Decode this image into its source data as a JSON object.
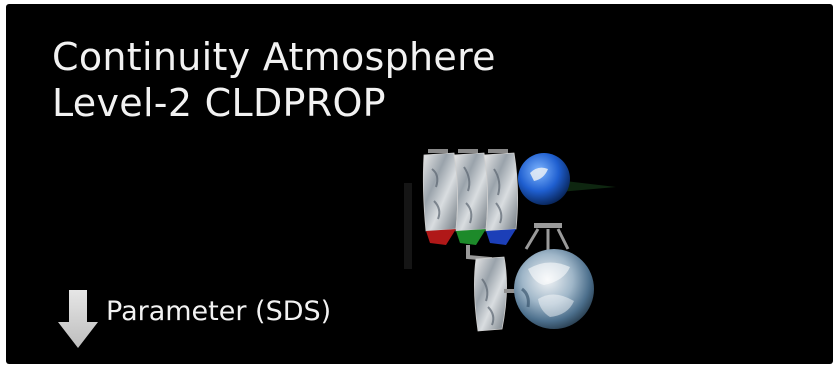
{
  "title": {
    "line1": "Continuity Atmosphere",
    "line2": "Level-2 CLDPROP"
  },
  "parameter": {
    "label": "Parameter (SDS)",
    "icon": "arrow-down-icon"
  },
  "diagram": {
    "icon": "satellite-swath-globe-icon"
  },
  "colors": {
    "background": "#000000",
    "text": "#f2f2f2"
  }
}
